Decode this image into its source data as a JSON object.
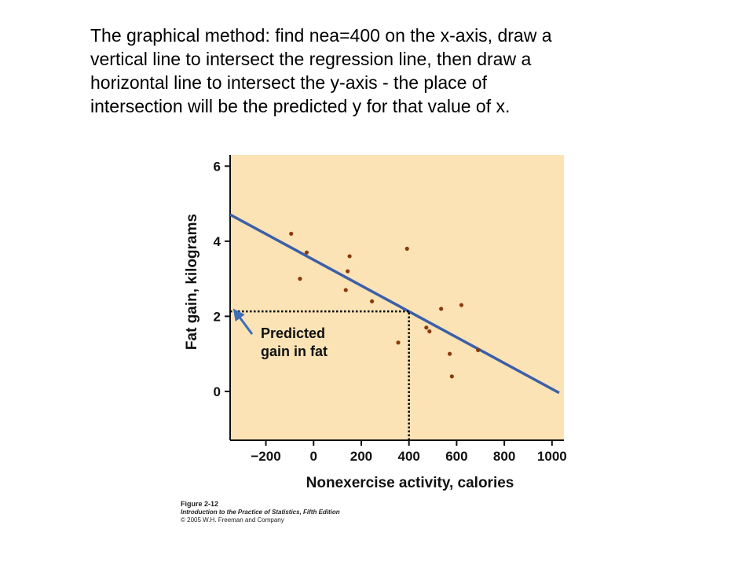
{
  "slide": {
    "lines": [
      "The graphical method: find nea=400 on the x-axis, draw a",
      "vertical line to intersect the regression line, then draw a",
      "horizontal line to intersect the y-axis - the place of",
      "intersection will be the predicted y for that value of x."
    ]
  },
  "chart_data": {
    "type": "scatter",
    "xlabel": "Nonexercise activity, calories",
    "ylabel": "Fat gain, kilograms",
    "xlim": [
      -350,
      1050
    ],
    "ylim": [
      -1.3,
      6.3
    ],
    "xticks": [
      -200,
      0,
      200,
      400,
      600,
      800,
      1000
    ],
    "xtick_labels": [
      "−200",
      "0",
      "200",
      "400",
      "600",
      "800",
      "1000"
    ],
    "yticks": [
      0,
      2,
      4,
      6
    ],
    "ytick_labels": [
      "0",
      "2",
      "4",
      "6"
    ],
    "grid": false,
    "points": [
      {
        "x": -94,
        "y": 4.2
      },
      {
        "x": -57,
        "y": 3.0
      },
      {
        "x": -29,
        "y": 3.7
      },
      {
        "x": 135,
        "y": 2.7
      },
      {
        "x": 143,
        "y": 3.2
      },
      {
        "x": 151,
        "y": 3.6
      },
      {
        "x": 245,
        "y": 2.4
      },
      {
        "x": 355,
        "y": 1.3
      },
      {
        "x": 392,
        "y": 3.8
      },
      {
        "x": 473,
        "y": 1.7
      },
      {
        "x": 486,
        "y": 1.6
      },
      {
        "x": 535,
        "y": 2.2
      },
      {
        "x": 571,
        "y": 1.0
      },
      {
        "x": 580,
        "y": 0.4
      },
      {
        "x": 620,
        "y": 2.3
      },
      {
        "x": 690,
        "y": 1.1
      }
    ],
    "regression_line": {
      "intercept": 3.505,
      "slope": -0.00344
    },
    "prediction": {
      "x": 400,
      "y": 2.13
    },
    "annotation": [
      "Predicted",
      "gain in fat"
    ],
    "colors": {
      "plot_bg": "#fbe3b5",
      "point": "#8b3a0c",
      "line": "#3d5fa8",
      "arrow": "#3d6fb8",
      "guide": "#000000"
    }
  },
  "credit": {
    "figure": "Figure 2-12",
    "book": "Introduction to the Practice of Statistics, Fifth Edition",
    "copyright": "© 2005 W.H. Freeman and Company"
  }
}
